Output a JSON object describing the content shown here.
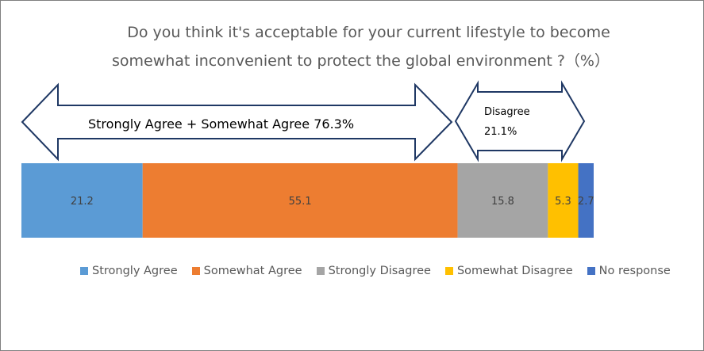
{
  "chart_data": {
    "type": "bar",
    "orientation": "horizontal-stacked",
    "title": "Do you think it's acceptable for your current lifestyle to become somewhat inconvenient to protect the global environment ?（%）",
    "title_lines": [
      "Do you think it's acceptable for your current lifestyle to become",
      "somewhat inconvenient to protect the global environment ?（%）"
    ],
    "series": [
      {
        "name": "Strongly Agree",
        "value": 21.2,
        "label": "21.2",
        "color": "#5B9BD5"
      },
      {
        "name": "Somewhat Agree",
        "value": 55.1,
        "label": "55.1",
        "color": "#ED7D31"
      },
      {
        "name": "Strongly Disagree",
        "value": 15.8,
        "label": "15.8",
        "color": "#A5A5A5"
      },
      {
        "name": "Somewhat Disagree",
        "value": 5.3,
        "label": "5.3",
        "color": "#FFC000"
      },
      {
        "name": "No response",
        "value": 2.7,
        "label": "2.7",
        "color": "#4472C4"
      }
    ],
    "annotations": {
      "agree": "Strongly Agree  + Somewhat Agree 76.3%",
      "disagree_line1": "Disagree",
      "disagree_line2": "21.1%"
    },
    "legend_position": "bottom"
  }
}
